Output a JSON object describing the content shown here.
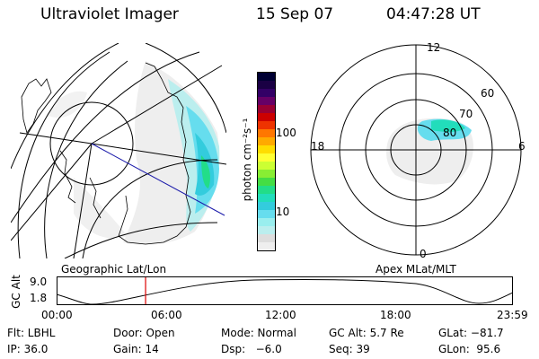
{
  "header": {
    "instrument": "Ultraviolet Imager",
    "date": "15 Sep 07",
    "time": "04:47:28 UT"
  },
  "left_panel": {
    "label": "Geographic Lat/Lon"
  },
  "right_panel": {
    "label": "Apex MLat/MLT",
    "mlt_labels": {
      "top": "12",
      "left": "18",
      "right": "6",
      "bottom": "0"
    },
    "lat_labels": [
      "60",
      "70",
      "80"
    ]
  },
  "colorbar": {
    "unit_label": "photon cm⁻²s⁻¹",
    "tick_labels": [
      "100",
      "10"
    ],
    "colors": [
      "#000033",
      "#1a0044",
      "#330066",
      "#660066",
      "#990033",
      "#cc0000",
      "#ee3300",
      "#ff7700",
      "#ffaa00",
      "#ffdd00",
      "#ffff33",
      "#ccff33",
      "#88ee33",
      "#44dd44",
      "#22dd88",
      "#22ddbb",
      "#33ccdd",
      "#66ddee",
      "#99eeee",
      "#bbeeee",
      "#dddddd",
      "#eeeeee"
    ]
  },
  "altitude_plot": {
    "ylabel": "GC Alt",
    "y_ticks": [
      "9.0",
      "1.8"
    ],
    "x_ticks": [
      "00:00",
      "06:00",
      "12:00",
      "18:00",
      "23:59"
    ],
    "marker_color": "#dd0000",
    "marker_fraction": 0.195
  },
  "status": {
    "flt": "Flt: LBHL",
    "door": "Door: Open",
    "mode": "Mode: Normal",
    "gc_alt": "GC Alt: 5.7 Re",
    "glat": "GLat: −81.7",
    "ip": "IP: 36.0",
    "gain": "Gain: 14",
    "dsp": "Dsp:   −6.0",
    "seq": "Seq: 39",
    "glon": "GLon:  95.6"
  }
}
